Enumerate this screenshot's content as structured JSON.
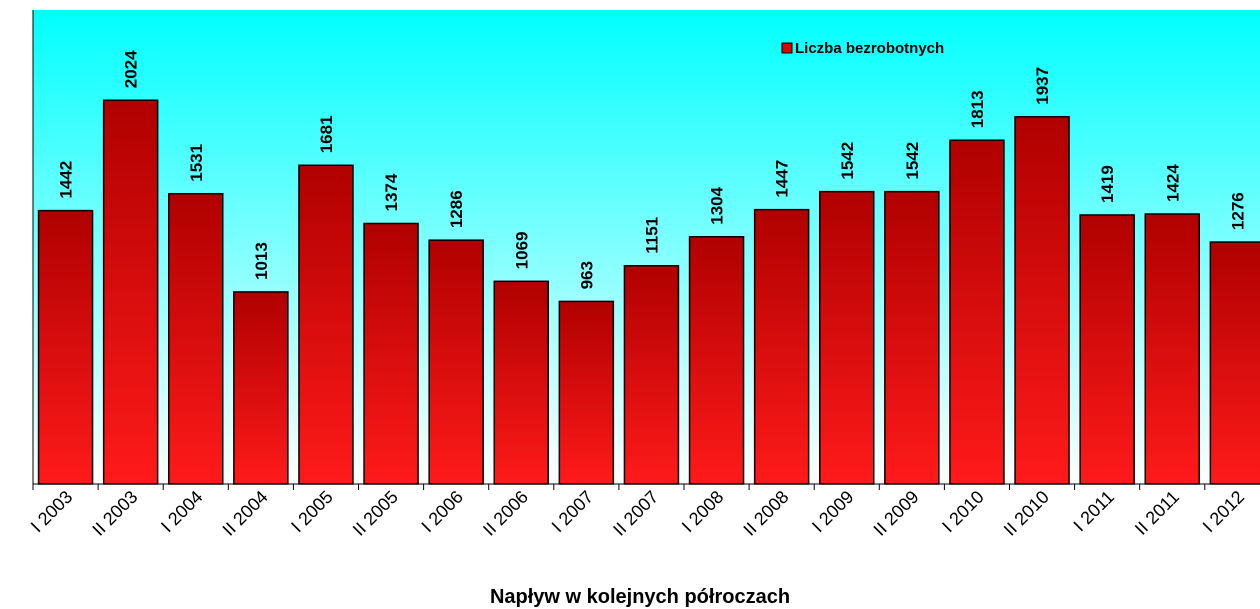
{
  "chart_data": {
    "type": "bar",
    "x_label": "Napływ w kolejnych półroczach",
    "categories": [
      "I 2003",
      "II 2003",
      "I 2004",
      "II 2004",
      "I 2005",
      "II 2005",
      "I 2006",
      "II 2006",
      "I 2007",
      "II 2007",
      "I 2008",
      "II 2008",
      "I 2009",
      "II 2009",
      "I 2010",
      "II 2010",
      "I 2011",
      "II 2011",
      "I 2012"
    ],
    "series": [
      {
        "name": "Liczba bezrobotnych",
        "color": "#e00000",
        "values": [
          1442,
          2024,
          1531,
          1013,
          1681,
          1374,
          1286,
          1069,
          963,
          1151,
          1304,
          1447,
          1542,
          1542,
          1813,
          1937,
          1419,
          1424,
          1276
        ]
      }
    ],
    "ylim": [
      0,
      2500
    ]
  }
}
